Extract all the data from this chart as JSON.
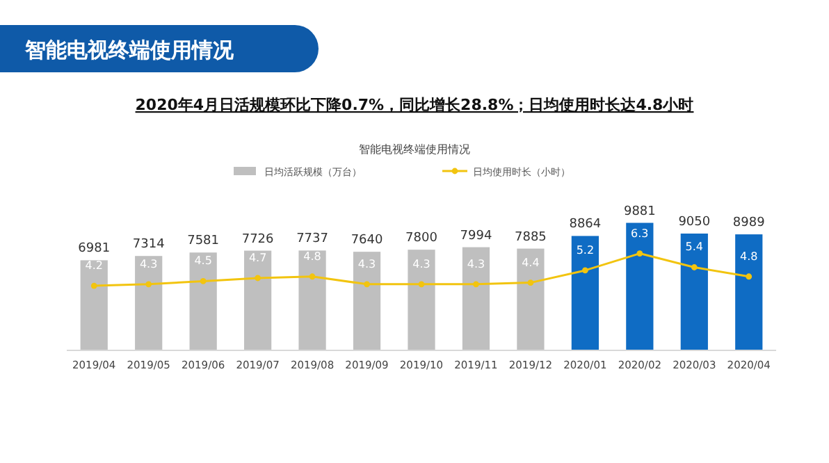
{
  "chart_data": {
    "type": "bar",
    "title": "智能电视终端使用情况",
    "subtitle": "2020年4月日活规模环比下降0.7%，同比增长28.8%；日均使用时长达4.8小时",
    "annotations": [
      "智能电视终端使用情况"
    ],
    "categories": [
      "2019/04",
      "2019/05",
      "2019/06",
      "2019/07",
      "2019/08",
      "2019/09",
      "2019/10",
      "2019/11",
      "2019/12",
      "2020/01",
      "2020/02",
      "2020/03",
      "2020/04"
    ],
    "series": [
      {
        "name": "日均活跃规模（万台）",
        "color": "#bfbfbf",
        "colors": [
          "#bfbfbf",
          "#bfbfbf",
          "#bfbfbf",
          "#bfbfbf",
          "#bfbfbf",
          "#bfbfbf",
          "#bfbfbf",
          "#bfbfbf",
          "#bfbfbf",
          "#0f6cc4",
          "#0f6cc4",
          "#0f6cc4",
          "#0f6cc4"
        ],
        "values": [
          6981,
          7314,
          7581,
          7726,
          7737,
          7640,
          7800,
          7994,
          7885,
          8864,
          9881,
          9050,
          8989
        ]
      },
      {
        "name": "日均使用时长（小时）",
        "type": "line",
        "axis": "y2",
        "color": "#f2c40f",
        "values": [
          4.2,
          4.3,
          4.5,
          4.7,
          4.8,
          4.3,
          4.3,
          4.3,
          4.4,
          5.2,
          6.3,
          5.4,
          4.8
        ]
      }
    ],
    "data_labels": true,
    "legend": "top",
    "marker": "circle",
    "grid": false
  }
}
